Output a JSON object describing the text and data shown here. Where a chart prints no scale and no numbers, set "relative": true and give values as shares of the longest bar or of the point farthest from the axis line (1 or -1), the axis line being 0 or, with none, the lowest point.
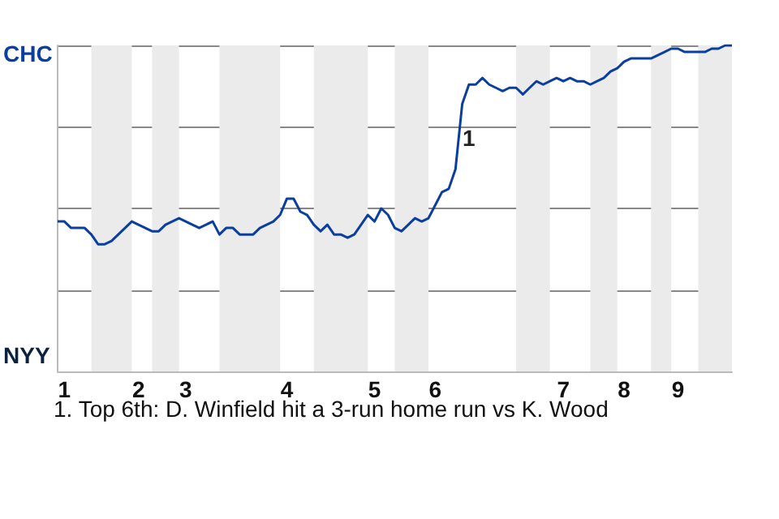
{
  "chart_data": {
    "type": "line",
    "relative": true,
    "categories": [
      null,
      "1",
      null,
      null,
      null,
      null,
      null,
      null,
      null,
      null,
      null,
      null,
      "2",
      null,
      null,
      null,
      null,
      null,
      null,
      "3",
      null,
      null,
      null,
      null,
      null,
      null,
      null,
      null,
      null,
      null,
      null,
      null,
      null,
      null,
      "4",
      null,
      null,
      null,
      null,
      null,
      null,
      null,
      null,
      null,
      null,
      null,
      null,
      "5",
      null,
      null,
      null,
      null,
      null,
      null,
      null,
      null,
      "6",
      null,
      null,
      null,
      null,
      null,
      null,
      null,
      null,
      null,
      null,
      null,
      null,
      null,
      null,
      null,
      null,
      null,
      null,
      "7",
      null,
      null,
      null,
      null,
      null,
      null,
      null,
      null,
      "8",
      null,
      null,
      null,
      null,
      null,
      null,
      null,
      "9",
      null,
      null,
      null,
      null,
      null,
      null,
      null,
      null
    ],
    "series": [
      {
        "color": "#0a3fa0",
        "values": [
          0.46,
          0.46,
          0.44,
          0.44,
          0.44,
          0.42,
          0.39,
          0.39,
          0.4,
          0.42,
          0.44,
          0.46,
          0.45,
          0.44,
          0.43,
          0.43,
          0.45,
          0.46,
          0.47,
          0.46,
          0.45,
          0.44,
          0.45,
          0.46,
          0.42,
          0.44,
          0.44,
          0.42,
          0.42,
          0.42,
          0.44,
          0.45,
          0.46,
          0.48,
          0.53,
          0.53,
          0.49,
          0.48,
          0.45,
          0.43,
          0.45,
          0.42,
          0.42,
          0.41,
          0.42,
          0.45,
          0.48,
          0.46,
          0.5,
          0.48,
          0.44,
          0.43,
          0.45,
          0.47,
          0.46,
          0.47,
          0.51,
          0.55,
          0.56,
          0.62,
          0.82,
          0.88,
          0.88,
          0.9,
          0.88,
          0.87,
          0.86,
          0.87,
          0.87,
          0.85,
          0.87,
          0.89,
          0.88,
          0.89,
          0.9,
          0.89,
          0.9,
          0.89,
          0.89,
          0.88,
          0.89,
          0.9,
          0.92,
          0.93,
          0.95,
          0.96,
          0.96,
          0.96,
          0.96,
          0.97,
          0.98,
          0.99,
          0.99,
          0.98,
          0.98,
          0.98,
          0.98,
          0.99,
          0.99,
          1,
          1
        ]
      }
    ],
    "grid": "y",
    "marker": "none",
    "annotations": [
      "CHC",
      "NYY",
      "1",
      "1. Top 6th: D. Winfield hit a 3-run home run vs K. Wood"
    ]
  }
}
